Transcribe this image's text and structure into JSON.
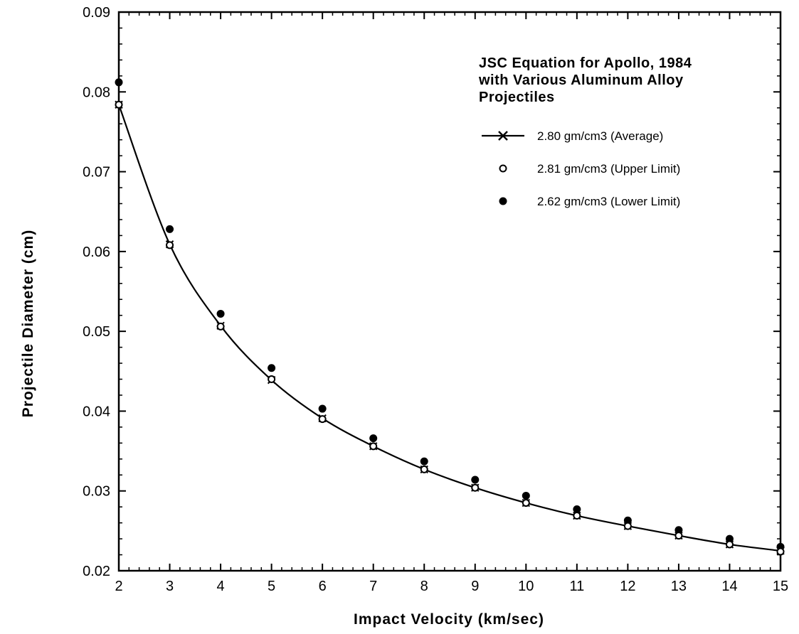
{
  "chart_data": {
    "type": "line",
    "xlabel": "Impact Velocity (km/sec)",
    "ylabel": "Projectile Diameter (cm)",
    "xlim": [
      2,
      15
    ],
    "ylim": [
      0.02,
      0.09
    ],
    "x_ticks": [
      2,
      3,
      4,
      5,
      6,
      7,
      8,
      9,
      10,
      11,
      12,
      13,
      14,
      15
    ],
    "x_tick_labels": [
      "2",
      "3",
      "4",
      "5",
      "6",
      "7",
      "8",
      "9",
      "10",
      "11",
      "12",
      "13",
      "14",
      "15"
    ],
    "y_ticks": [
      0.02,
      0.03,
      0.04,
      0.05,
      0.06,
      0.07,
      0.08,
      0.09
    ],
    "y_tick_labels": [
      "0.02",
      "0.03",
      "0.04",
      "0.05",
      "0.06",
      "0.07",
      "0.08",
      "0.09"
    ],
    "grid": false,
    "legend_placement": "top-right",
    "legend_title_lines": [
      "JSC Equation for Apollo, 1984",
      "with Various Aluminum Alloy",
      "Projectiles"
    ],
    "x": [
      2,
      3,
      4,
      5,
      6,
      7,
      8,
      9,
      10,
      11,
      12,
      13,
      14,
      15
    ],
    "series": [
      {
        "name": "2.80 gm/cm3 (Average)",
        "style": "line-x",
        "values": [
          0.0784,
          0.0609,
          0.0507,
          0.0439,
          0.0391,
          0.0356,
          0.0327,
          0.0304,
          0.0285,
          0.0269,
          0.0256,
          0.0244,
          0.0233,
          0.0225
        ]
      },
      {
        "name": "2.81 gm/cm3 (Upper Limit)",
        "style": "open-circle",
        "values": [
          0.0784,
          0.0608,
          0.0506,
          0.044,
          0.039,
          0.0356,
          0.0327,
          0.0304,
          0.0285,
          0.0269,
          0.0256,
          0.0244,
          0.0233,
          0.0224
        ]
      },
      {
        "name": "2.62 gm/cm3 (Lower Limit)",
        "style": "filled-circle",
        "values": [
          0.0812,
          0.0628,
          0.0522,
          0.0454,
          0.0403,
          0.0366,
          0.0337,
          0.0314,
          0.0294,
          0.0277,
          0.0263,
          0.0251,
          0.024,
          0.023
        ]
      }
    ]
  }
}
